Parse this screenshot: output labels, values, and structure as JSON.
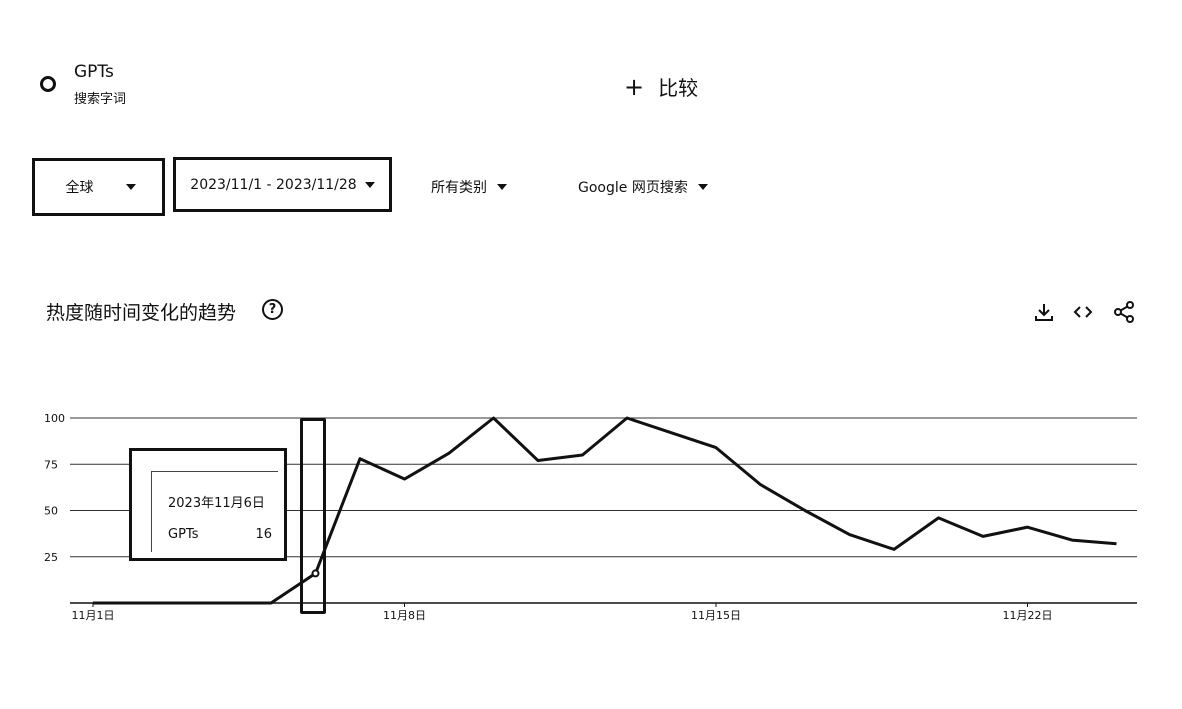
{
  "search_term": {
    "name": "GPTs",
    "type_label": "搜索字词",
    "icon": "circle-marker-icon"
  },
  "compare": {
    "plus": "+",
    "label": "比较"
  },
  "filters": {
    "region": "全球",
    "date_range": "2023/11/1 - 2023/11/28",
    "category": "所有类别",
    "source": "Google 网页搜索"
  },
  "section": {
    "title": "热度随时间变化的趋势",
    "help_icon": "?",
    "tools": [
      "download-icon",
      "embed-code-icon",
      "share-icon"
    ]
  },
  "tooltip": {
    "date": "2023年11月6日",
    "term": "GPTs",
    "value": "16"
  },
  "chart_data": {
    "type": "line",
    "x": [
      "2023-11-01",
      "2023-11-02",
      "2023-11-03",
      "2023-11-04",
      "2023-11-05",
      "2023-11-06",
      "2023-11-07",
      "2023-11-08",
      "2023-11-09",
      "2023-11-10",
      "2023-11-11",
      "2023-11-12",
      "2023-11-13",
      "2023-11-14",
      "2023-11-15",
      "2023-11-16",
      "2023-11-17",
      "2023-11-18",
      "2023-11-19",
      "2023-11-20",
      "2023-11-21",
      "2023-11-22",
      "2023-11-23",
      "2023-11-24"
    ],
    "series": [
      {
        "name": "GPTs",
        "values": [
          0,
          0,
          0,
          0,
          0,
          16,
          78,
          67,
          81,
          100,
          77,
          80,
          100,
          92,
          84,
          64,
          50,
          37,
          29,
          46,
          36,
          41,
          34,
          32
        ]
      }
    ],
    "x_tick_labels": [
      "11月1日",
      "11月8日",
      "11月15日",
      "11月22日"
    ],
    "y_ticks": [
      25,
      50,
      75,
      100
    ],
    "ylim": [
      0,
      100
    ],
    "highlighted_date": "2023-11-06",
    "grid": true,
    "line_color": "#111111"
  }
}
